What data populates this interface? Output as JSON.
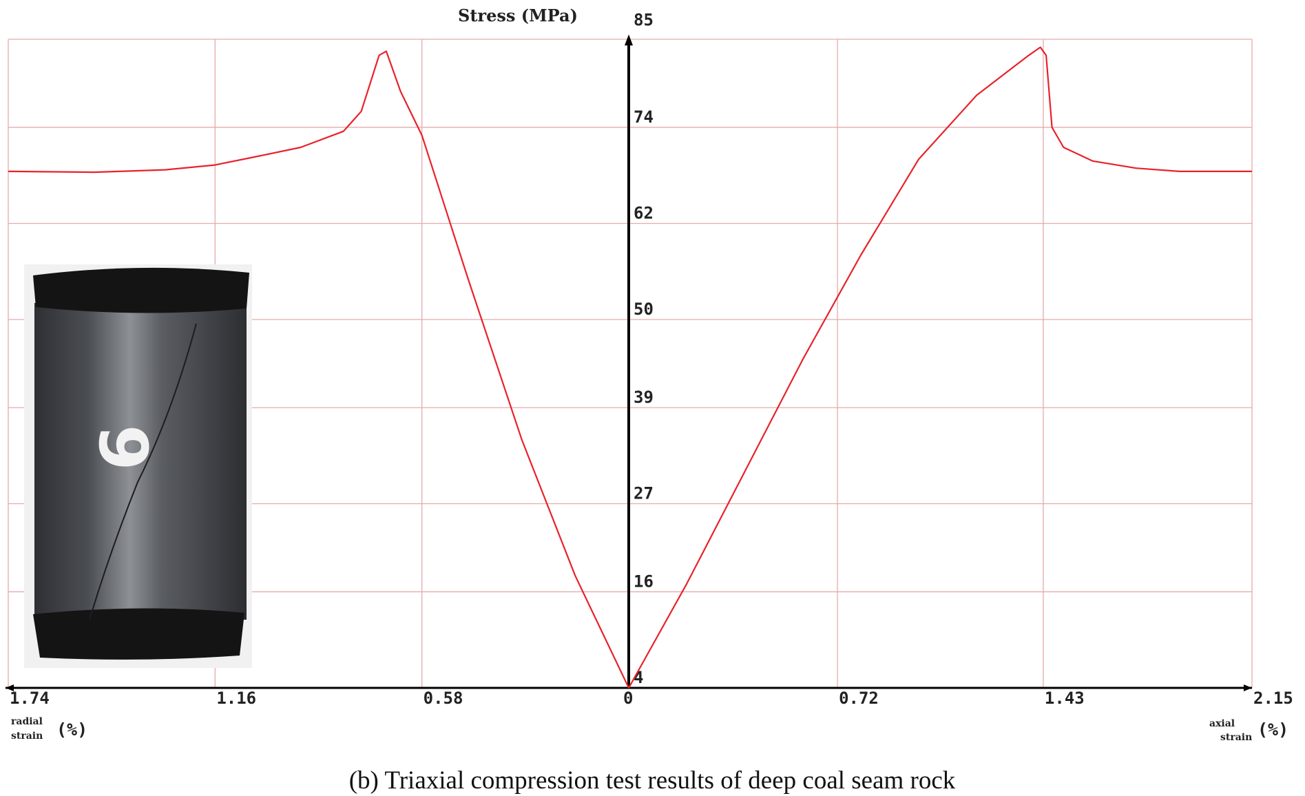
{
  "chart_data": {
    "type": "line",
    "ytitle": "Stress (MPa)",
    "y_ticks": [
      "85",
      "74",
      "62",
      "50",
      "39",
      "27",
      "16",
      "4"
    ],
    "y_tick_values": [
      85,
      74,
      62,
      50,
      39,
      27,
      16,
      4
    ],
    "ylim": [
      4,
      85
    ],
    "left_axis": {
      "name": "radial strain",
      "label_line1": "radial",
      "label_line2": "strain",
      "unit": "(%)",
      "ticks": [
        "1.74",
        "1.16",
        "0.58",
        "0"
      ],
      "tick_values": [
        1.74,
        1.16,
        0.58,
        0
      ]
    },
    "right_axis": {
      "name": "axial strain",
      "label_line1": "axial",
      "label_line2": "strain",
      "unit": "(%)",
      "ticks": [
        "0",
        "0.72",
        "1.43",
        "2.15"
      ],
      "tick_values": [
        0,
        0.72,
        1.43,
        2.15
      ]
    },
    "grid": true,
    "line_color": "#e8212a",
    "grid_color": "#e6aaaa",
    "series": [
      {
        "name": "radial strain",
        "side": "left",
        "points": [
          [
            0,
            4
          ],
          [
            0.15,
            18
          ],
          [
            0.3,
            35
          ],
          [
            0.45,
            55
          ],
          [
            0.58,
            73
          ],
          [
            0.64,
            78.5
          ],
          [
            0.68,
            83.5
          ],
          [
            0.7,
            83
          ],
          [
            0.75,
            76
          ],
          [
            0.8,
            73.5
          ],
          [
            0.92,
            71.5
          ],
          [
            1.05,
            70.3
          ],
          [
            1.16,
            69.3
          ],
          [
            1.3,
            68.7
          ],
          [
            1.5,
            68.4
          ],
          [
            1.74,
            68.5
          ]
        ]
      },
      {
        "name": "axial strain",
        "side": "right",
        "points": [
          [
            0,
            4
          ],
          [
            0.2,
            17
          ],
          [
            0.4,
            31
          ],
          [
            0.6,
            45
          ],
          [
            0.8,
            58
          ],
          [
            1.0,
            70
          ],
          [
            1.2,
            78
          ],
          [
            1.38,
            83
          ],
          [
            1.42,
            84
          ],
          [
            1.44,
            83
          ],
          [
            1.46,
            74
          ],
          [
            1.5,
            71.5
          ],
          [
            1.6,
            69.8
          ],
          [
            1.75,
            68.9
          ],
          [
            1.9,
            68.5
          ],
          [
            2.15,
            68.5
          ]
        ]
      }
    ]
  },
  "figure": {
    "caption": "(b) Triaxial compression test results of deep coal seam rock",
    "inset_photo": {
      "marking": "6",
      "colors": {
        "background": "#f1f1f1",
        "cap": "#141414",
        "body_dark": "#3b3e42",
        "body_light": "#8a8d90",
        "marking": "#f2f2f2"
      }
    }
  }
}
